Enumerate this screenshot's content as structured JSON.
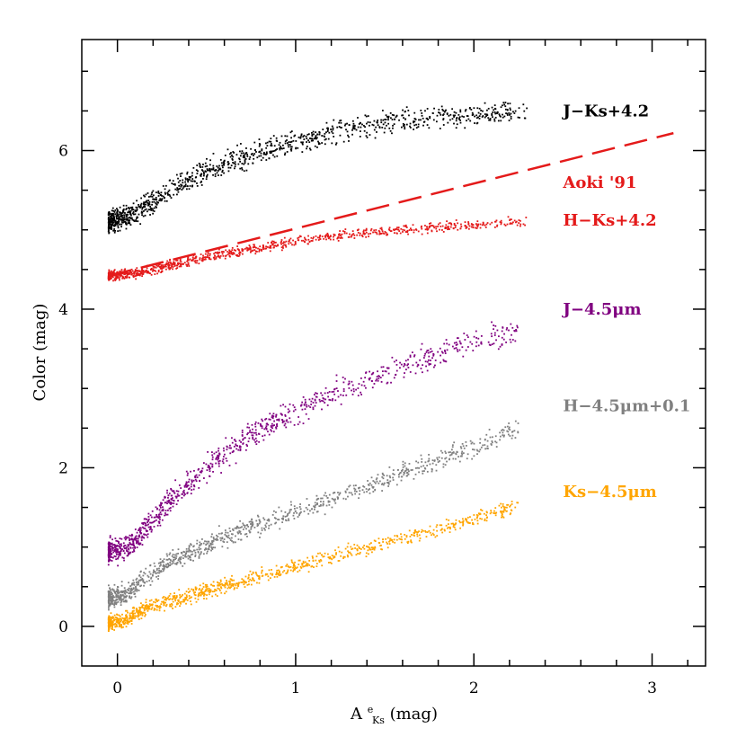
{
  "chart_data": {
    "type": "scatter",
    "title": "",
    "xlabel_main": "A",
    "xlabel_sup": "e",
    "xlabel_sub": "Ks",
    "xlabel_unit": "(mag)",
    "ylabel": "Color (mag)",
    "xlim": [
      -0.2,
      3.3
    ],
    "ylim": [
      -0.5,
      7.4
    ],
    "xticks": [
      {
        "value": 0,
        "label": "0"
      },
      {
        "value": 1,
        "label": "1"
      },
      {
        "value": 2,
        "label": "2"
      },
      {
        "value": 3,
        "label": "3"
      }
    ],
    "yticks": [
      {
        "value": 0,
        "label": "0"
      },
      {
        "value": 2,
        "label": "2"
      },
      {
        "value": 4,
        "label": "4"
      },
      {
        "value": 6,
        "label": "6"
      }
    ],
    "x_minor_step": 0.2,
    "y_minor_step": 0.5,
    "series": [
      {
        "name": "J−Ks+4.2",
        "color": "#000000",
        "label_pos": [
          2.5,
          6.5
        ],
        "trend": {
          "x": [
            -0.05,
            0.1,
            0.3,
            0.5,
            0.75,
            1.0,
            1.25,
            1.5,
            1.75,
            2.0,
            2.25
          ],
          "y": [
            5.1,
            5.2,
            5.5,
            5.75,
            5.95,
            6.1,
            6.25,
            6.35,
            6.42,
            6.45,
            6.48
          ]
        },
        "x_range": [
          -0.05,
          2.3
        ],
        "n_points": 1100,
        "scatter": 0.07
      },
      {
        "name": "H−Ks+4.2",
        "color": "#e41a1a",
        "label_pos": [
          2.5,
          5.12
        ],
        "trend": {
          "x": [
            -0.05,
            0.1,
            0.3,
            0.5,
            0.75,
            1.0,
            1.25,
            1.5,
            1.75,
            2.0,
            2.25
          ],
          "y": [
            4.42,
            4.45,
            4.55,
            4.65,
            4.76,
            4.85,
            4.93,
            4.99,
            5.03,
            5.06,
            5.1
          ]
        },
        "x_range": [
          -0.05,
          2.3
        ],
        "n_points": 900,
        "scatter": 0.03
      },
      {
        "name": "J−4.5μm",
        "color": "#800080",
        "label_pos": [
          2.5,
          4.0
        ],
        "trend": {
          "x": [
            -0.05,
            0.05,
            0.15,
            0.3,
            0.5,
            0.75,
            1.0,
            1.25,
            1.5,
            1.75,
            2.0,
            2.25
          ],
          "y": [
            0.93,
            0.98,
            1.2,
            1.6,
            2.0,
            2.4,
            2.72,
            2.98,
            3.2,
            3.4,
            3.6,
            3.72
          ]
        },
        "x_range": [
          -0.05,
          2.25
        ],
        "n_points": 1000,
        "scatter": 0.08
      },
      {
        "name": "H−4.5μm+0.1",
        "color": "#808080",
        "label_pos": [
          2.5,
          2.78
        ],
        "trend": {
          "x": [
            -0.05,
            0.05,
            0.15,
            0.3,
            0.5,
            0.75,
            1.0,
            1.25,
            1.5,
            1.75,
            2.0,
            2.25
          ],
          "y": [
            0.36,
            0.4,
            0.6,
            0.82,
            1.03,
            1.25,
            1.45,
            1.65,
            1.85,
            2.05,
            2.25,
            2.5
          ]
        },
        "x_range": [
          -0.05,
          2.25
        ],
        "n_points": 1000,
        "scatter": 0.06
      },
      {
        "name": "Ks−4.5μm",
        "color": "#ffa500",
        "label_pos": [
          2.5,
          1.7
        ],
        "trend": {
          "x": [
            -0.05,
            0.05,
            0.15,
            0.3,
            0.5,
            0.75,
            1.0,
            1.25,
            1.5,
            1.75,
            2.0,
            2.25
          ],
          "y": [
            0.04,
            0.08,
            0.22,
            0.33,
            0.45,
            0.6,
            0.75,
            0.9,
            1.05,
            1.2,
            1.36,
            1.52
          ]
        },
        "x_range": [
          -0.05,
          2.25
        ],
        "n_points": 1000,
        "scatter": 0.045
      }
    ],
    "reference_line": {
      "name": "Aoki '91",
      "color": "#e41a1a",
      "style": "dashed",
      "x": [
        -0.05,
        3.12
      ],
      "y": [
        4.42,
        6.22
      ],
      "label_pos": [
        2.5,
        5.6
      ]
    }
  }
}
